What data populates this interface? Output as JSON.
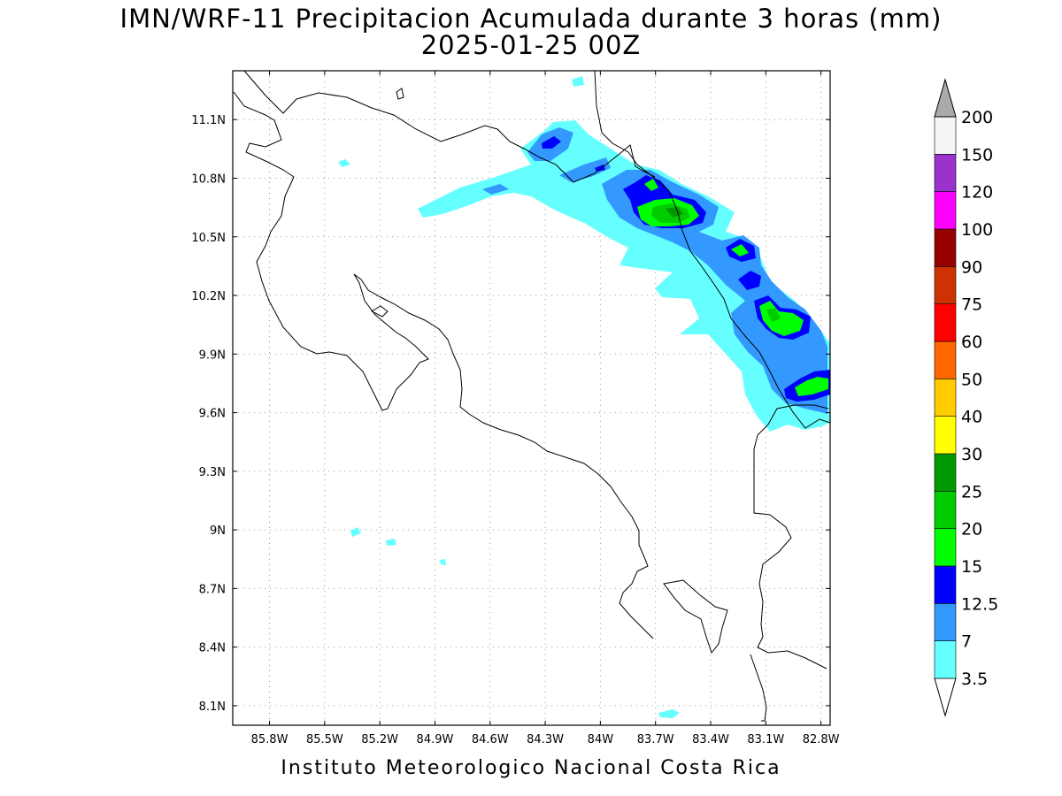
{
  "title": {
    "line1": "IMN/WRF-11 Precipitacion Acumulada durante 3 horas (mm)",
    "line2": "2025-01-25 00Z"
  },
  "footer": "Instituto Meteorologico Nacional Costa Rica",
  "map": {
    "lon_range": [
      -86.0,
      -82.75
    ],
    "lat_range": [
      8.0,
      11.35
    ],
    "lat_ticks": [
      {
        "value": 11.1,
        "label": "11.1N"
      },
      {
        "value": 10.8,
        "label": "10.8N"
      },
      {
        "value": 10.5,
        "label": "10.5N"
      },
      {
        "value": 10.2,
        "label": "10.2N"
      },
      {
        "value": 9.9,
        "label": "9.9N"
      },
      {
        "value": 9.6,
        "label": "9.6N"
      },
      {
        "value": 9.3,
        "label": "9.3N"
      },
      {
        "value": 9.0,
        "label": "9N"
      },
      {
        "value": 8.7,
        "label": "8.7N"
      },
      {
        "value": 8.4,
        "label": "8.4N"
      },
      {
        "value": 8.1,
        "label": "8.1N"
      }
    ],
    "lon_ticks": [
      {
        "value": -85.8,
        "label": "85.8W"
      },
      {
        "value": -85.5,
        "label": "85.5W"
      },
      {
        "value": -85.2,
        "label": "85.2W"
      },
      {
        "value": -84.9,
        "label": "84.9W"
      },
      {
        "value": -84.6,
        "label": "84.6W"
      },
      {
        "value": -84.3,
        "label": "84.3W"
      },
      {
        "value": -84.0,
        "label": "84W"
      },
      {
        "value": -83.7,
        "label": "83.7W"
      },
      {
        "value": -83.4,
        "label": "83.4W"
      },
      {
        "value": -83.1,
        "label": "83.1W"
      },
      {
        "value": -82.8,
        "label": "82.8W"
      }
    ],
    "grid": "dotted"
  },
  "colorbar": {
    "labels": [
      "3.5",
      "7",
      "12.5",
      "15",
      "20",
      "25",
      "30",
      "40",
      "50",
      "60",
      "75",
      "90",
      "100",
      "120",
      "150",
      "200"
    ],
    "colors": [
      "#66ffff",
      "#3399ff",
      "#0000ff",
      "#00ff00",
      "#00cc00",
      "#009900",
      "#ffff00",
      "#ffcc00",
      "#ff6600",
      "#ff0000",
      "#cc3300",
      "#990000",
      "#ff00ff",
      "#9933cc",
      "#f5f5f5",
      "#aaaaaa"
    ]
  }
}
